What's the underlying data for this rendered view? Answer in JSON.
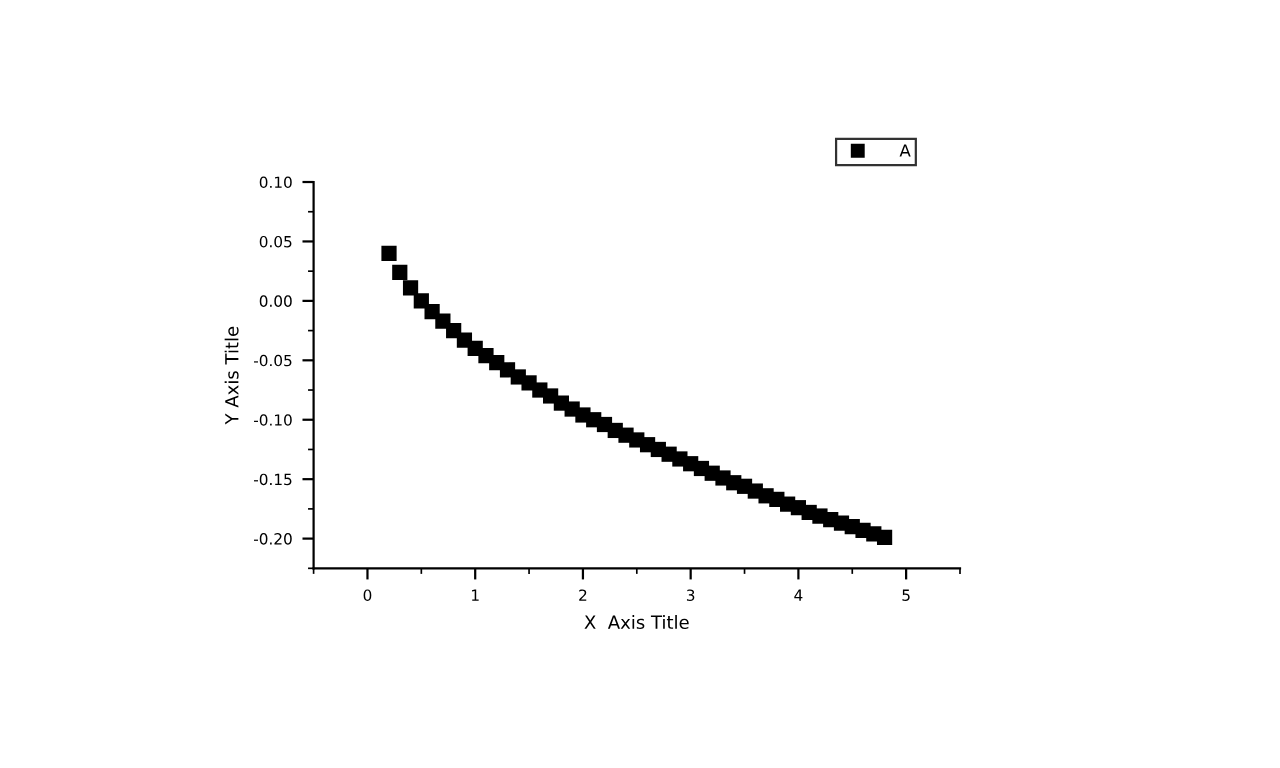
{
  "chart_data": {
    "type": "scatter",
    "xlabel": "X  Axis Title",
    "ylabel": "Y Axis Title",
    "xlim": [
      -0.5,
      5.5
    ],
    "xticks": [
      0,
      1,
      2,
      3,
      4,
      5
    ],
    "ylim": [
      -0.225,
      0.1
    ],
    "yticks": [
      {
        "value": -0.2,
        "label": "-0.20"
      },
      {
        "value": -0.15,
        "label": "-0.15"
      },
      {
        "value": -0.1,
        "label": "-0.10"
      },
      {
        "value": -0.05,
        "label": "-0.05"
      },
      {
        "value": 0,
        "label": "0.00"
      },
      {
        "value": 0.05,
        "label": "0.05"
      },
      {
        "value": 0.1,
        "label": "0.10"
      }
    ],
    "marker": "square",
    "legend": "top right",
    "grid": false,
    "series": [
      {
        "name": "A",
        "color": "#000000",
        "x": [
          0.2,
          0.3,
          0.4,
          0.5,
          0.6,
          0.7,
          0.8,
          0.9,
          1.0,
          1.1,
          1.2,
          1.3,
          1.4,
          1.5,
          1.6,
          1.7,
          1.8,
          1.9,
          2.0,
          2.1,
          2.2,
          2.3,
          2.4,
          2.5,
          2.6,
          2.7,
          2.8,
          2.9,
          3.0,
          3.1,
          3.2,
          3.3,
          3.4,
          3.5,
          3.6,
          3.7,
          3.8,
          3.9,
          4.0,
          4.1,
          4.2,
          4.3,
          4.4,
          4.5,
          4.6,
          4.7,
          4.8
        ],
        "values": [
          0.04,
          0.024,
          0.011,
          0.0,
          -0.009,
          -0.017,
          -0.025,
          -0.033,
          -0.04,
          -0.046,
          -0.052,
          -0.058,
          -0.064,
          -0.069,
          -0.075,
          -0.08,
          -0.086,
          -0.091,
          -0.096,
          -0.1,
          -0.104,
          -0.109,
          -0.113,
          -0.117,
          -0.121,
          -0.125,
          -0.129,
          -0.133,
          -0.137,
          -0.141,
          -0.145,
          -0.149,
          -0.153,
          -0.156,
          -0.16,
          -0.164,
          -0.167,
          -0.171,
          -0.174,
          -0.178,
          -0.181,
          -0.184,
          -0.187,
          -0.19,
          -0.193,
          -0.196,
          -0.199
        ]
      }
    ]
  }
}
